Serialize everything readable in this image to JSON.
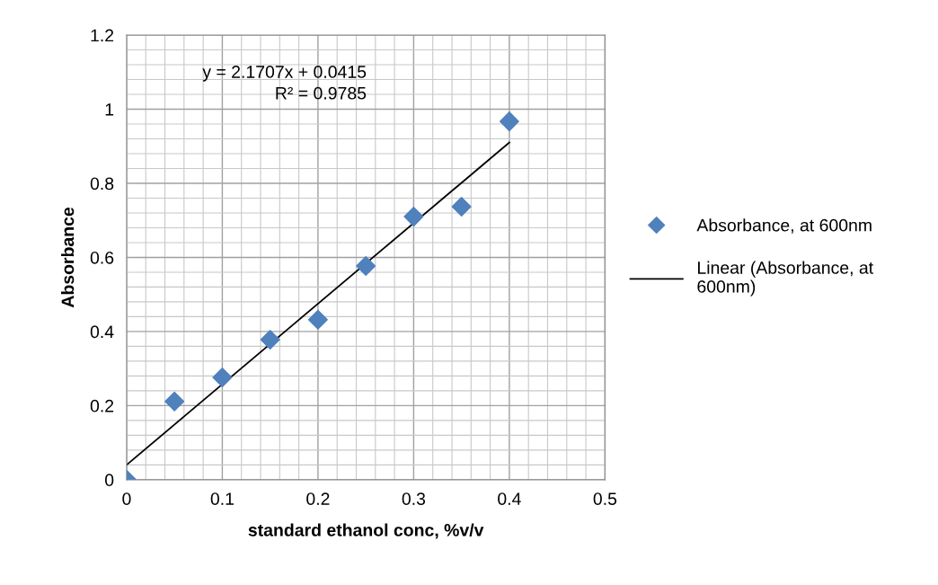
{
  "chart_data": {
    "type": "scatter",
    "xlabel": "standard ethanol conc, %v/v",
    "ylabel": "Absorbance",
    "x": [
      0,
      0.05,
      0.1,
      0.15,
      0.2,
      0.25,
      0.3,
      0.35,
      0.4
    ],
    "series": [
      {
        "name": "Absorbance, at 600nm",
        "color": "#4f81bd",
        "marker": "diamond",
        "values": [
          0,
          0.211,
          0.276,
          0.378,
          0.432,
          0.577,
          0.71,
          0.737,
          0.967
        ]
      },
      {
        "name": "Linear (Absorbance, at\n600nm)",
        "type": "line",
        "color": "#000000",
        "marker": "none",
        "line_style": "solid",
        "x": [
          0,
          0.4
        ],
        "values": [
          0.04,
          0.91
        ]
      }
    ],
    "annotations": [
      "y = 2.1707x + 0.0415\nR² = 0.9785"
    ],
    "xlim": [
      0,
      0.5
    ],
    "xticks": [
      0,
      0.1,
      0.2,
      0.3,
      0.4,
      0.5
    ],
    "ylim": [
      0,
      1.2
    ],
    "yticks": [
      0,
      0.2,
      0.4,
      0.6,
      0.8,
      1,
      1.2
    ],
    "grid": true,
    "legend": "right"
  }
}
